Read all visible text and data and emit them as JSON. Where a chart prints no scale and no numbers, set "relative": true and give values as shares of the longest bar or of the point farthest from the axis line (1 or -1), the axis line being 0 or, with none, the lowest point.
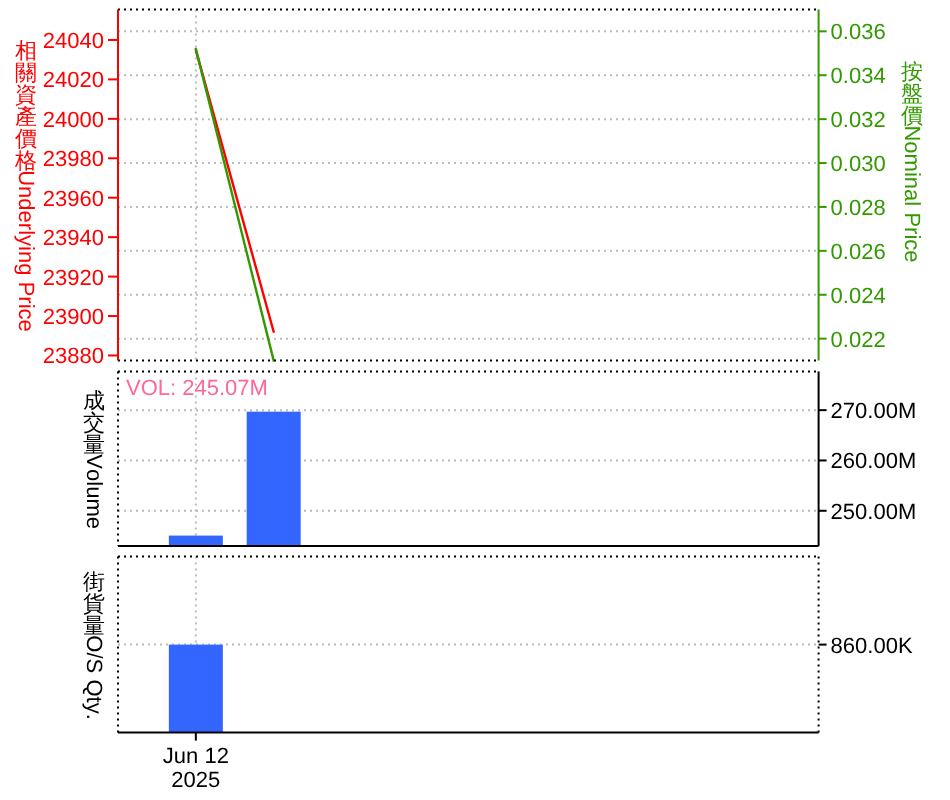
{
  "chart_data": [
    {
      "type": "line",
      "ylabel": "相關資產價格Underlying Price",
      "y2label": "按盤價Nominal Price",
      "categories": [
        null,
        null,
        null,
        null,
        null,
        null,
        null,
        null
      ],
      "series": [
        {
          "color": "#ff0000",
          "values": [
            24035,
            23892,
            null,
            null,
            null,
            null,
            null,
            null
          ]
        },
        {
          "color": "#339900",
          "values": [
            0.0352,
            0.021,
            null,
            null,
            null,
            null,
            null,
            null
          ],
          "axis": "y2"
        }
      ],
      "ylim": [
        23877.4,
        24055.5
      ],
      "yticks": [
        23880,
        23900,
        23920,
        23940,
        23960,
        23980,
        24000,
        24020,
        24040
      ],
      "y2lim": [
        0.021,
        0.037
      ],
      "y2ticks": [
        0.022,
        0.024,
        0.026,
        0.028,
        {
          "value": 0.03,
          "label": "0.030"
        },
        0.032,
        0.034,
        0.036
      ],
      "grid": true
    },
    {
      "type": "bar",
      "ylabel": "成交量Volume",
      "categories": [
        null,
        null,
        null,
        null,
        null,
        null,
        null,
        null
      ],
      "series": [
        {
          "color": "#3366ff",
          "values": [
            245070000,
            269700000,
            null,
            null,
            null,
            null,
            null,
            null
          ],
          "axis": "y2"
        }
      ],
      "y2lim": [
        243000000,
        277700000
      ],
      "y2ticks": [
        {
          "value": 250000000,
          "label": "250.00M"
        },
        {
          "value": 260000000,
          "label": "260.00M"
        },
        {
          "value": 270000000,
          "label": "270.00M"
        }
      ],
      "grid": true,
      "annotations": [
        "VOL: 245.07M"
      ]
    },
    {
      "type": "bar",
      "relative": true,
      "ylabel": "街貨量O/S Qty.",
      "categories": [
        null,
        null,
        null,
        null,
        null,
        null,
        null,
        null
      ],
      "values": [
        1,
        null,
        null,
        null,
        null,
        null,
        null,
        null
      ],
      "color": "#3366ff",
      "grid": "x",
      "ref_lines": [
        {
          "axis": "y",
          "value": 1,
          "label": "860.00K",
          "color": "#bbbbbb",
          "line_style": "dotted"
        }
      ],
      "annotations": [
        "Jun 12\n2025"
      ]
    }
  ]
}
